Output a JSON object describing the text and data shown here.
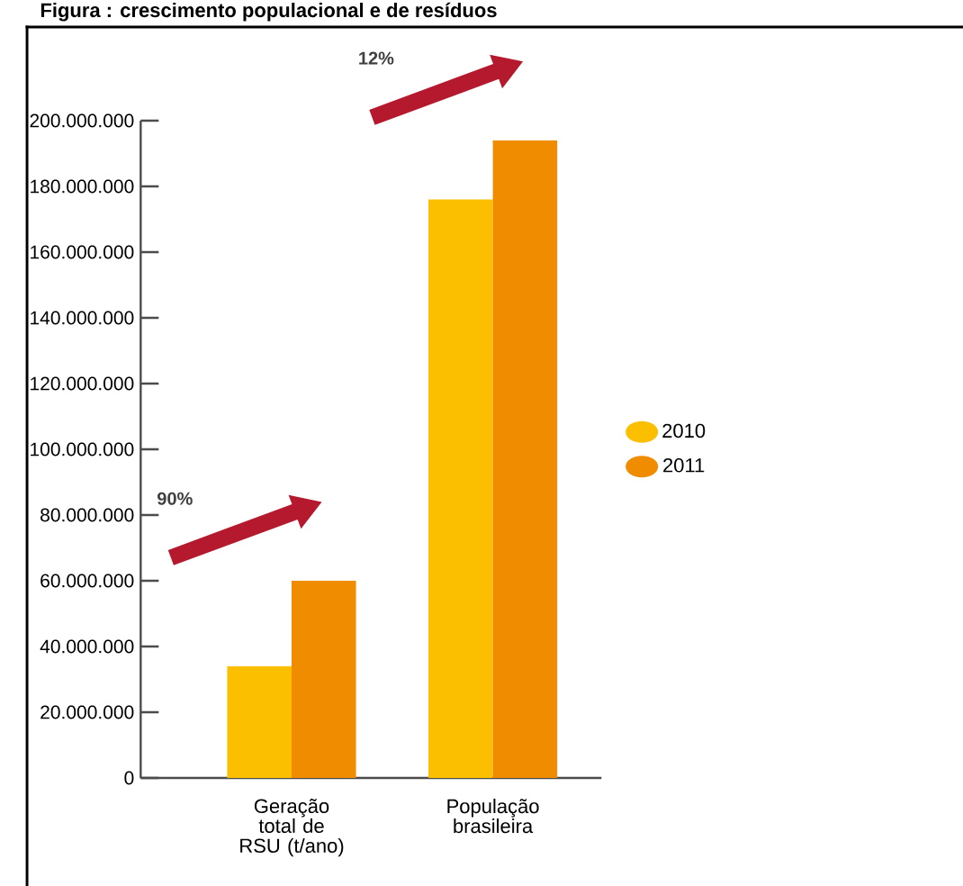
{
  "chart_data": {
    "type": "bar",
    "title": "Figura : crescimento populacional e de resíduos",
    "categories": [
      "Geração total de RSU (t/ano)",
      "População brasileira"
    ],
    "series": [
      {
        "name": "2010",
        "color": "#fbbf00",
        "values": [
          34000000,
          176000000
        ]
      },
      {
        "name": "2011",
        "color": "#f08c00",
        "values": [
          60000000,
          194000000
        ]
      }
    ],
    "ylim": [
      0,
      200000000
    ],
    "yticks": [
      {
        "value": 0,
        "label": "0"
      },
      {
        "value": 20000000,
        "label": "20.000.000"
      },
      {
        "value": 40000000,
        "label": "40.000.000"
      },
      {
        "value": 60000000,
        "label": "60.000.000"
      },
      {
        "value": 80000000,
        "label": "80.000.000"
      },
      {
        "value": 100000000,
        "label": "100.000.000"
      },
      {
        "value": 120000000,
        "label": "120.000.000"
      },
      {
        "value": 140000000,
        "label": "140.000.000"
      },
      {
        "value": 160000000,
        "label": "160.000.000"
      },
      {
        "value": 180000000,
        "label": "180.000.000"
      },
      {
        "value": 200000000,
        "label": "200.000.000"
      }
    ],
    "annotations": [
      "90%",
      "12%"
    ],
    "grid": false,
    "legend": "right"
  }
}
